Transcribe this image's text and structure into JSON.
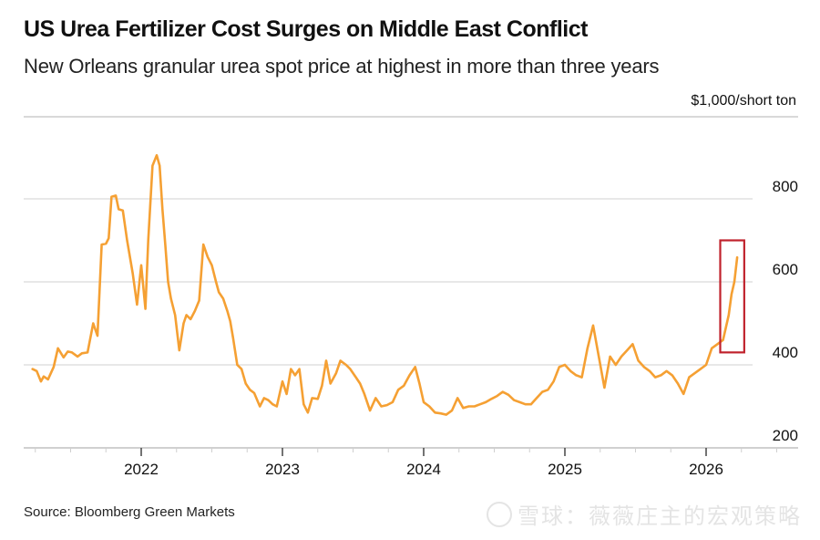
{
  "chart_data": {
    "type": "line",
    "title": "US Urea Fertilizer Cost Surges on Middle East Conflict",
    "subtitle": "New Orleans granular urea spot price at highest in more than three years",
    "unit_label": "$1,000/short ton",
    "xlabel": "",
    "ylabel": "",
    "x_ticks": [
      "2022",
      "2023",
      "2024",
      "2025",
      "2026"
    ],
    "y_ticks": [
      "200",
      "400",
      "600",
      "800"
    ],
    "xlim": [
      2021.2,
      2026.8
    ],
    "ylim": [
      200,
      900
    ],
    "grid": true,
    "y_axis_position": "right",
    "series": [
      {
        "name": "New Orleans granular urea spot price",
        "color": "#F5A033",
        "x": [
          2021.23,
          2021.26,
          2021.29,
          2021.31,
          2021.34,
          2021.38,
          2021.41,
          2021.45,
          2021.48,
          2021.51,
          2021.55,
          2021.58,
          2021.62,
          2021.66,
          2021.69,
          2021.72,
          2021.75,
          2021.77,
          2021.79,
          2021.82,
          2021.84,
          2021.87,
          2021.9,
          2021.94,
          2021.97,
          2022.0,
          2022.03,
          2022.05,
          2022.08,
          2022.11,
          2022.13,
          2022.15,
          2022.17,
          2022.19,
          2022.21,
          2022.24,
          2022.27,
          2022.3,
          2022.32,
          2022.35,
          2022.38,
          2022.41,
          2022.44,
          2022.47,
          2022.5,
          2022.53,
          2022.55,
          2022.58,
          2022.61,
          2022.63,
          2022.65,
          2022.68,
          2022.71,
          2022.74,
          2022.77,
          2022.8,
          2022.84,
          2022.87,
          2022.9,
          2022.93,
          2022.96,
          2023.0,
          2023.03,
          2023.06,
          2023.09,
          2023.12,
          2023.15,
          2023.18,
          2023.21,
          2023.25,
          2023.28,
          2023.31,
          2023.34,
          2023.38,
          2023.41,
          2023.45,
          2023.48,
          2023.52,
          2023.55,
          2023.58,
          2023.62,
          2023.66,
          2023.7,
          2023.74,
          2023.78,
          2023.82,
          2023.86,
          2023.9,
          2023.94,
          2023.97,
          2024.0,
          2024.04,
          2024.08,
          2024.12,
          2024.16,
          2024.2,
          2024.24,
          2024.28,
          2024.32,
          2024.36,
          2024.4,
          2024.44,
          2024.48,
          2024.52,
          2024.56,
          2024.6,
          2024.64,
          2024.68,
          2024.72,
          2024.76,
          2024.8,
          2024.84,
          2024.88,
          2024.92,
          2024.96,
          2025.0,
          2025.04,
          2025.08,
          2025.12,
          2025.16,
          2025.2,
          2025.24,
          2025.28,
          2025.32,
          2025.36,
          2025.4,
          2025.44,
          2025.48,
          2025.52,
          2025.56,
          2025.6,
          2025.64,
          2025.68,
          2025.72,
          2025.76,
          2025.8,
          2025.84,
          2025.88,
          2025.92,
          2025.96,
          2026.0,
          2026.04,
          2026.08,
          2026.12,
          2026.16,
          2026.18,
          2026.2,
          2026.22
        ],
        "values": [
          390,
          385,
          360,
          372,
          365,
          395,
          440,
          418,
          432,
          430,
          420,
          428,
          430,
          500,
          470,
          690,
          692,
          705,
          805,
          808,
          775,
          772,
          700,
          620,
          545,
          640,
          535,
          700,
          880,
          905,
          880,
          775,
          690,
          600,
          560,
          520,
          435,
          500,
          520,
          510,
          530,
          555,
          690,
          660,
          640,
          600,
          575,
          560,
          530,
          505,
          465,
          400,
          390,
          355,
          340,
          332,
          300,
          320,
          315,
          305,
          300,
          360,
          330,
          390,
          375,
          390,
          305,
          285,
          320,
          318,
          350,
          410,
          355,
          380,
          410,
          400,
          390,
          370,
          355,
          330,
          290,
          320,
          300,
          303,
          310,
          340,
          350,
          375,
          395,
          355,
          310,
          300,
          285,
          283,
          280,
          290,
          320,
          296,
          300,
          300,
          305,
          310,
          318,
          325,
          335,
          328,
          315,
          310,
          305,
          305,
          320,
          335,
          340,
          360,
          395,
          400,
          385,
          375,
          370,
          440,
          495,
          420,
          345,
          420,
          400,
          420,
          435,
          450,
          410,
          395,
          385,
          370,
          375,
          385,
          375,
          355,
          330,
          370,
          380,
          390,
          400,
          440,
          450,
          460,
          520,
          570,
          600,
          659
        ]
      }
    ],
    "annotations": [
      {
        "type": "highlight-box",
        "color": "#C0222C",
        "x_range": [
          2026.1,
          2026.27
        ],
        "y_range": [
          430,
          700
        ]
      }
    ],
    "source": "Source: Bloomberg Green Markets"
  },
  "header": {
    "title": "US Urea Fertilizer Cost Surges on Middle East Conflict",
    "subtitle": "New Orleans granular urea spot price at highest in more than three years",
    "unit": "$1,000/short ton"
  },
  "footer": {
    "source": "Source: Bloomberg Green Markets",
    "watermark": "雪球：薇薇庄主的宏观策略"
  },
  "colors": {
    "line": "#F5A033",
    "highlight": "#C0222C",
    "grid": "#d9d9d9",
    "text": "#111111"
  }
}
